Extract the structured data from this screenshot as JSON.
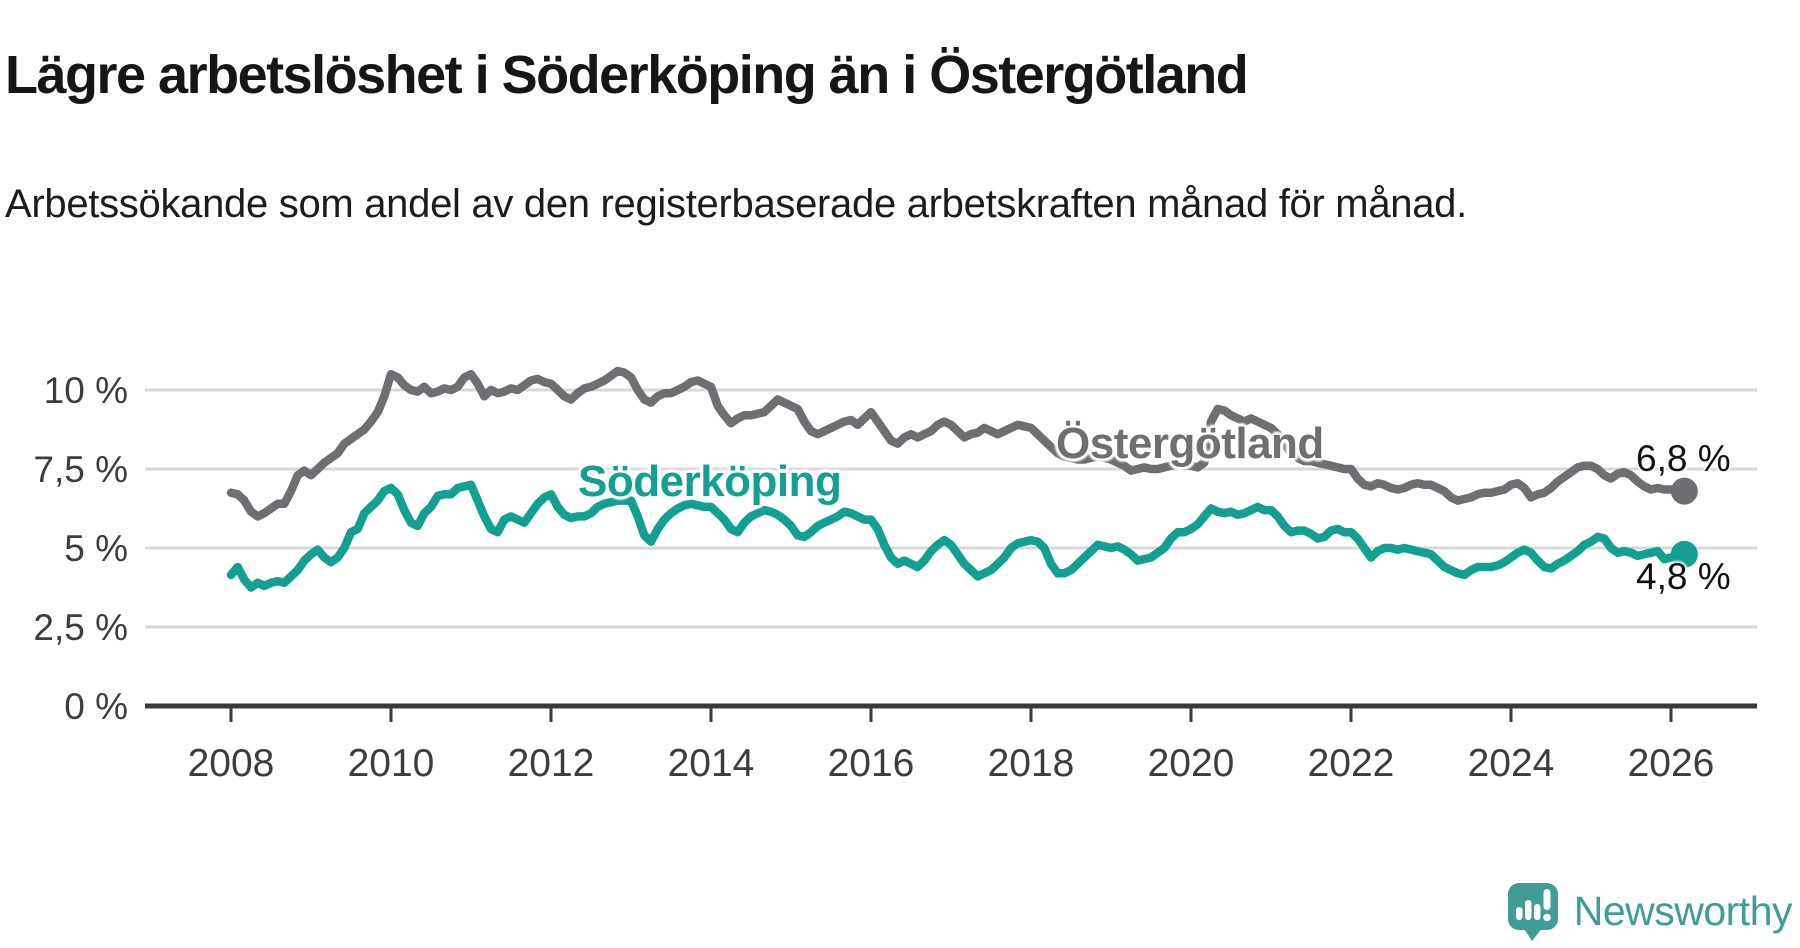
{
  "header": {
    "title": "Lägre arbetslöshet i Söderköping än i Östergötland",
    "subtitle": "Arbetssökande som andel av den registerbaserade arbetskraften månad för månad."
  },
  "branding": {
    "name": "Newsworthy",
    "color": "#3F9D95",
    "icon": "speech-bubble-bar-chart"
  },
  "chart_data": {
    "type": "line",
    "title": "Lägre arbetslöshet i Söderköping än i Östergötland",
    "xlabel": "",
    "ylabel": "Arbetssökande som andel av den registerbaserade arbetskraften",
    "x_start_year": 2008,
    "x_start_month": 1,
    "x_step_months": 1,
    "x_end_year": 2026,
    "x_end_month": 3,
    "xlim": [
      2006.95,
      2027.1
    ],
    "ylim": [
      0,
      10.8
    ],
    "grid": true,
    "x_ticks": [
      2008,
      2010,
      2012,
      2014,
      2016,
      2018,
      2020,
      2022,
      2024,
      2026
    ],
    "y_ticks": [
      {
        "label": "0 %",
        "value": 0
      },
      {
        "label": "2,5 %",
        "value": 2.5
      },
      {
        "label": "5 %",
        "value": 5
      },
      {
        "label": "7,5 %",
        "value": 7.5
      },
      {
        "label": "10 %",
        "value": 10
      }
    ],
    "colors": {
      "grid": "#d8d8d8",
      "axis": "#3a3a3a",
      "tick_text": "#3d3d3d"
    },
    "legend_position": "inline-labels",
    "series": [
      {
        "name": "Östergötland",
        "color": "#6F6F73",
        "end_label": "6,8 %",
        "end_value": 6.8,
        "values": [
          6.75,
          6.7,
          6.5,
          6.15,
          6.0,
          6.1,
          6.25,
          6.4,
          6.4,
          6.8,
          7.3,
          7.45,
          7.3,
          7.5,
          7.7,
          7.85,
          8.0,
          8.3,
          8.45,
          8.6,
          8.75,
          9.0,
          9.3,
          9.8,
          10.5,
          10.4,
          10.15,
          10.0,
          9.95,
          10.1,
          9.9,
          9.95,
          10.05,
          10.0,
          10.1,
          10.4,
          10.5,
          10.2,
          9.8,
          10.0,
          9.9,
          9.95,
          10.05,
          10.0,
          10.15,
          10.3,
          10.35,
          10.25,
          10.2,
          10.0,
          9.8,
          9.7,
          9.9,
          10.05,
          10.1,
          10.2,
          10.3,
          10.45,
          10.6,
          10.55,
          10.4,
          10.0,
          9.7,
          9.6,
          9.8,
          9.9,
          9.9,
          10.0,
          10.1,
          10.25,
          10.3,
          10.2,
          10.1,
          9.5,
          9.2,
          8.95,
          9.1,
          9.2,
          9.2,
          9.25,
          9.3,
          9.5,
          9.7,
          9.6,
          9.5,
          9.4,
          9.0,
          8.7,
          8.6,
          8.7,
          8.8,
          8.9,
          9.0,
          9.05,
          8.9,
          9.1,
          9.3,
          9.0,
          8.7,
          8.4,
          8.3,
          8.5,
          8.6,
          8.5,
          8.6,
          8.7,
          8.9,
          9.0,
          8.9,
          8.7,
          8.5,
          8.6,
          8.65,
          8.8,
          8.7,
          8.6,
          8.7,
          8.8,
          8.9,
          8.85,
          8.8,
          8.6,
          8.4,
          8.2,
          8.0,
          7.9,
          7.85,
          7.8,
          7.8,
          7.85,
          7.9,
          7.85,
          7.8,
          7.7,
          7.6,
          7.45,
          7.5,
          7.55,
          7.5,
          7.5,
          7.55,
          7.6,
          7.65,
          7.6,
          7.6,
          7.55,
          7.7,
          9.0,
          9.4,
          9.35,
          9.2,
          9.1,
          9.0,
          9.1,
          9.0,
          8.9,
          8.8,
          8.6,
          8.3,
          8.0,
          7.85,
          7.75,
          7.75,
          7.7,
          7.65,
          7.6,
          7.55,
          7.5,
          7.5,
          7.2,
          7.0,
          6.95,
          7.05,
          7.0,
          6.9,
          6.85,
          6.9,
          7.0,
          7.05,
          7.0,
          7.0,
          6.9,
          6.8,
          6.6,
          6.5,
          6.55,
          6.6,
          6.7,
          6.75,
          6.75,
          6.8,
          6.85,
          7.0,
          7.05,
          6.9,
          6.6,
          6.7,
          6.75,
          6.9,
          7.1,
          7.25,
          7.4,
          7.55,
          7.6,
          7.6,
          7.5,
          7.3,
          7.2,
          7.35,
          7.4,
          7.3,
          7.1,
          6.95,
          6.85,
          6.9,
          6.85,
          6.85,
          6.82,
          6.8
        ]
      },
      {
        "name": "Söderköping",
        "color": "#13A091",
        "end_label": "4,8 %",
        "end_value": 4.8,
        "values": [
          4.15,
          4.4,
          4.0,
          3.75,
          3.9,
          3.8,
          3.9,
          3.95,
          3.9,
          4.1,
          4.3,
          4.6,
          4.8,
          4.95,
          4.7,
          4.55,
          4.7,
          5.0,
          5.5,
          5.6,
          6.1,
          6.3,
          6.5,
          6.8,
          6.9,
          6.7,
          6.2,
          5.8,
          5.7,
          6.1,
          6.3,
          6.65,
          6.7,
          6.7,
          6.9,
          6.95,
          7.0,
          6.5,
          6.0,
          5.6,
          5.5,
          5.9,
          6.0,
          5.9,
          5.8,
          6.1,
          6.4,
          6.6,
          6.7,
          6.3,
          6.05,
          5.95,
          6.0,
          6.0,
          6.1,
          6.3,
          6.4,
          6.45,
          6.5,
          6.5,
          6.5,
          6.0,
          5.4,
          5.2,
          5.6,
          5.9,
          6.1,
          6.25,
          6.35,
          6.4,
          6.35,
          6.3,
          6.3,
          6.1,
          5.9,
          5.6,
          5.5,
          5.8,
          6.0,
          6.1,
          6.2,
          6.15,
          6.05,
          5.9,
          5.7,
          5.4,
          5.35,
          5.5,
          5.7,
          5.8,
          5.9,
          6.0,
          6.15,
          6.1,
          6.0,
          5.9,
          5.9,
          5.6,
          5.1,
          4.7,
          4.5,
          4.6,
          4.5,
          4.4,
          4.6,
          4.9,
          5.1,
          5.25,
          5.1,
          4.8,
          4.5,
          4.3,
          4.1,
          4.2,
          4.3,
          4.5,
          4.7,
          5.0,
          5.15,
          5.2,
          5.25,
          5.2,
          5.0,
          4.5,
          4.2,
          4.2,
          4.3,
          4.5,
          4.7,
          4.9,
          5.1,
          5.05,
          5.0,
          5.05,
          4.95,
          4.8,
          4.6,
          4.65,
          4.7,
          4.85,
          5.0,
          5.3,
          5.5,
          5.5,
          5.6,
          5.75,
          6.0,
          6.25,
          6.15,
          6.1,
          6.15,
          6.05,
          6.1,
          6.2,
          6.3,
          6.2,
          6.2,
          6.0,
          5.7,
          5.5,
          5.55,
          5.55,
          5.45,
          5.3,
          5.35,
          5.55,
          5.6,
          5.5,
          5.5,
          5.3,
          5.0,
          4.7,
          4.9,
          5.0,
          5.0,
          4.95,
          5.0,
          4.95,
          4.9,
          4.85,
          4.8,
          4.6,
          4.4,
          4.3,
          4.2,
          4.15,
          4.3,
          4.4,
          4.4,
          4.4,
          4.45,
          4.55,
          4.7,
          4.85,
          4.95,
          4.85,
          4.6,
          4.4,
          4.35,
          4.5,
          4.6,
          4.75,
          4.9,
          5.1,
          5.2,
          5.35,
          5.3,
          5.0,
          4.85,
          4.9,
          4.85,
          4.75,
          4.8,
          4.85,
          4.9,
          4.65,
          4.7,
          4.75,
          4.8
        ]
      }
    ]
  }
}
